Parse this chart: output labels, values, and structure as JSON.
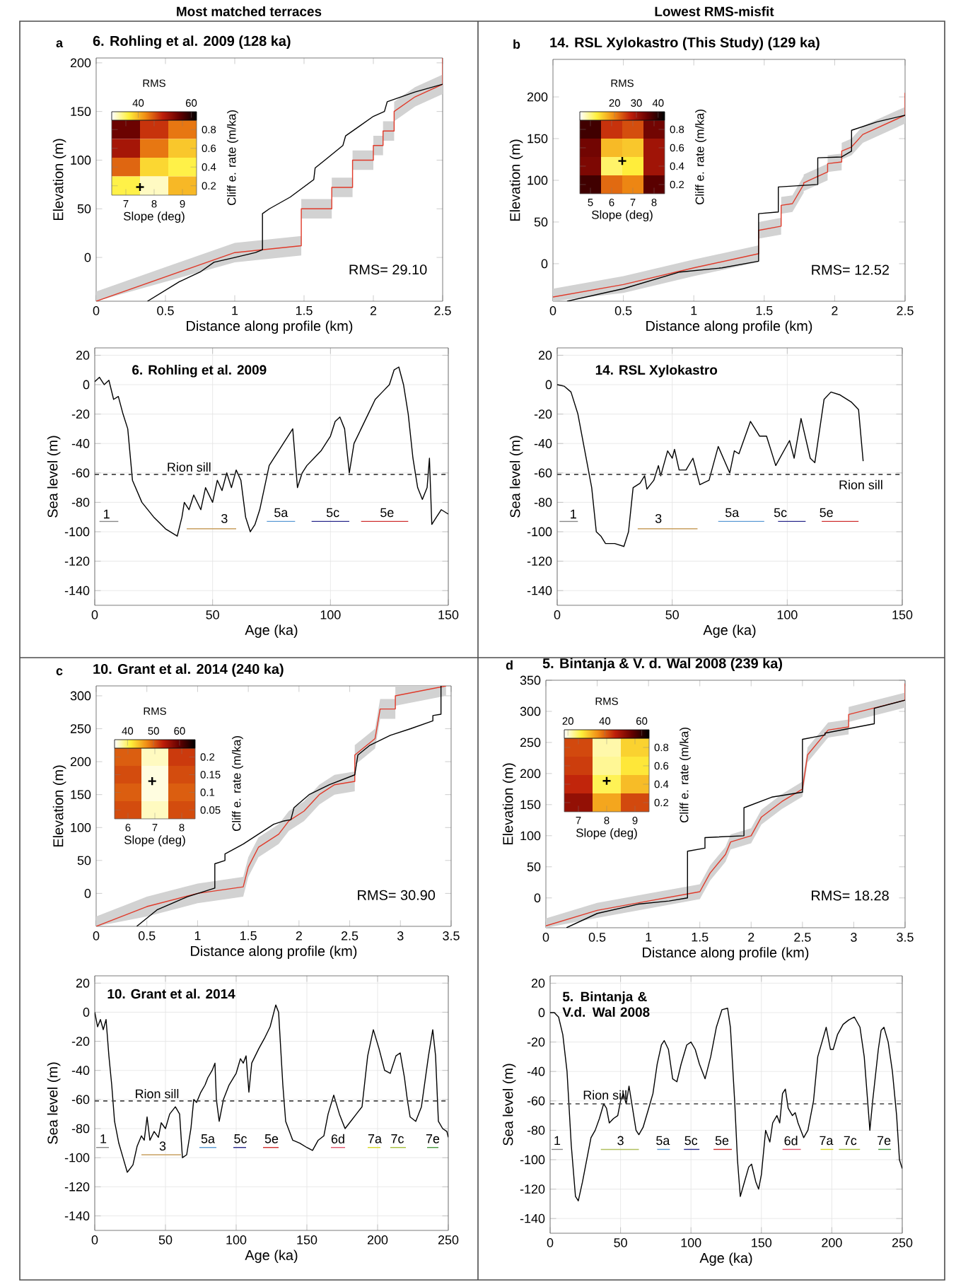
{
  "chart_data": [
    {
      "type": "other",
      "annotations": [
        "Most matched terraces",
        "Lowest RMS-misfit"
      ]
    },
    {
      "type": "line",
      "title": "6. Rohling et al. 2009 (128 ka)",
      "xlabel": "Distance along profile (km)",
      "ylabel": "Elevation (m)",
      "xlim": [
        0,
        2.5
      ],
      "ylim": [
        -45,
        205
      ],
      "xticks": [
        0,
        0.5,
        1,
        1.5,
        2,
        2.5
      ],
      "yticks": [
        0,
        50,
        100,
        150,
        200
      ],
      "annotations": [
        "a",
        "RMS= 29.10"
      ],
      "series": [
        {
          "color": "#000000",
          "x": [
            0.37,
            0.6,
            0.75,
            0.85,
            1.0,
            1.15,
            1.2,
            1.2,
            1.25,
            1.4,
            1.57,
            1.58,
            1.65,
            1.78,
            1.8,
            1.9,
            2.0,
            2.08,
            2.1,
            2.3,
            2.5
          ],
          "values": [
            -45,
            -25,
            -15,
            -5,
            0,
            5,
            8,
            45,
            50,
            62,
            80,
            92,
            100,
            115,
            125,
            135,
            145,
            150,
            160,
            170,
            178
          ]
        },
        {
          "color": "#e03a2a",
          "x": [
            0,
            0.5,
            1.0,
            1.48,
            1.48,
            1.7,
            1.7,
            1.85,
            1.85,
            2.0,
            2.0,
            2.07,
            2.07,
            2.15,
            2.15,
            2.3,
            2.5,
            2.5
          ],
          "values": [
            -45,
            -20,
            5,
            12,
            50,
            50,
            72,
            72,
            100,
            100,
            115,
            115,
            130,
            130,
            150,
            165,
            178,
            205
          ],
          "lower": [
            -45,
            null,
            -5,
            2,
            40,
            40,
            62,
            62,
            90,
            90,
            105,
            105,
            120,
            120,
            140,
            155,
            168,
            188
          ],
          "upper": [
            -35,
            null,
            15,
            22,
            60,
            60,
            82,
            82,
            110,
            110,
            125,
            125,
            140,
            140,
            160,
            175,
            188,
            205
          ]
        }
      ]
    },
    {
      "type": "heatmap",
      "clabel": "RMS",
      "xlabel": "Slope (deg)",
      "ylabel": "Cliff e. rate (m/ka)",
      "categories": [
        "7",
        "8",
        "9"
      ],
      "y_categories": [
        "0.8",
        "0.6",
        "0.4",
        "0.2"
      ],
      "clim": [
        30,
        62
      ],
      "cticks": [
        40,
        60
      ],
      "annotations": [
        "+"
      ],
      "cells": [
        [
          55,
          48,
          44
        ],
        [
          51,
          44,
          39
        ],
        [
          45,
          38,
          36
        ],
        [
          36,
          32,
          40
        ]
      ]
    },
    {
      "type": "line",
      "title": "14. RSL Xylokastro (This Study) (129 ka)",
      "xlabel": "Distance along profile (km)",
      "ylabel": "Elevation (m)",
      "xlim": [
        0,
        2.5
      ],
      "ylim": [
        -45,
        245
      ],
      "xticks": [
        0,
        0.5,
        1,
        1.5,
        2,
        2.5
      ],
      "yticks": [
        0,
        50,
        100,
        150,
        200
      ],
      "annotations": [
        "b",
        "RMS= 12.52"
      ],
      "series": [
        {
          "color": "#000000",
          "x": [
            0.1,
            0.5,
            0.9,
            1.2,
            1.46,
            1.46,
            1.6,
            1.6,
            1.88,
            1.88,
            2.05,
            2.12,
            2.12,
            2.3,
            2.5
          ],
          "values": [
            -45,
            -30,
            -10,
            -5,
            3,
            60,
            62,
            92,
            95,
            127,
            128,
            135,
            160,
            170,
            178
          ]
        },
        {
          "color": "#e03a2a",
          "x": [
            0,
            0.5,
            1.0,
            1.46,
            1.46,
            1.62,
            1.62,
            1.7,
            1.78,
            1.78,
            1.95,
            1.95,
            2.05,
            2.05,
            2.12,
            2.2,
            2.5,
            2.5
          ],
          "values": [
            -40,
            -25,
            -5,
            12,
            40,
            45,
            70,
            72,
            95,
            97,
            110,
            120,
            122,
            135,
            140,
            155,
            178,
            205
          ],
          "lower": [
            -45,
            -35,
            -15,
            2,
            30,
            35,
            60,
            62,
            85,
            87,
            100,
            110,
            112,
            125,
            130,
            145,
            168,
            188
          ],
          "upper": [
            -30,
            -15,
            5,
            22,
            50,
            55,
            80,
            82,
            105,
            107,
            120,
            130,
            132,
            145,
            150,
            165,
            188,
            215
          ]
        }
      ]
    },
    {
      "type": "heatmap",
      "clabel": "RMS",
      "xlabel": "Slope (deg)",
      "ylabel": "Cliff e. rate (m/ka)",
      "categories": [
        "5",
        "6",
        "7",
        "8"
      ],
      "y_categories": [
        "0.8",
        "0.6",
        "0.4",
        "0.2"
      ],
      "clim": [
        4,
        43
      ],
      "cticks": [
        20,
        30,
        40
      ],
      "annotations": [
        "+"
      ],
      "cells": [
        [
          38,
          26,
          24,
          34
        ],
        [
          34,
          16,
          15,
          30
        ],
        [
          33,
          10,
          12,
          30
        ],
        [
          38,
          22,
          20,
          36
        ]
      ]
    },
    {
      "type": "line",
      "title": "6. Rohling et al. 2009",
      "xlabel": "Age (ka)",
      "ylabel": "Sea level (m)",
      "xlim": [
        0,
        150
      ],
      "ylim": [
        -150,
        25
      ],
      "xticks": [
        0,
        50,
        100,
        150
      ],
      "yticks": [
        -140,
        -120,
        -100,
        -80,
        -60,
        -40,
        -20,
        0,
        20
      ],
      "grid": true,
      "ref_lines": [
        {
          "axis": "y",
          "value": -61,
          "label": "Rion sill",
          "line_style": "dashed",
          "color": "#444444"
        }
      ],
      "annotations": [
        "1",
        "3",
        "5a",
        "5c",
        "5e"
      ],
      "series": [
        {
          "color": "#000000",
          "x": [
            0,
            2,
            4,
            6,
            8,
            10,
            12,
            14,
            16,
            20,
            25,
            30,
            35,
            37,
            38,
            40,
            42,
            45,
            47,
            50,
            52,
            54,
            56,
            58,
            60,
            62,
            64,
            66,
            68,
            70,
            72,
            74,
            76,
            78,
            80,
            82,
            84,
            85,
            86,
            88,
            90,
            93,
            96,
            100,
            102,
            104,
            106,
            108,
            110,
            113,
            116,
            119,
            122,
            125,
            127,
            129,
            131,
            133,
            135,
            137,
            139,
            141,
            142,
            143,
            145,
            147,
            150
          ],
          "values": [
            2,
            5,
            0,
            3,
            -10,
            -8,
            -20,
            -30,
            -65,
            -80,
            -90,
            -98,
            -103,
            -90,
            -80,
            -85,
            -75,
            -85,
            -70,
            -80,
            -65,
            -72,
            -60,
            -70,
            -58,
            -65,
            -90,
            -100,
            -95,
            -85,
            -70,
            -55,
            -50,
            -45,
            -40,
            -35,
            -30,
            -50,
            -70,
            -60,
            -55,
            -50,
            -45,
            -35,
            -25,
            -22,
            -30,
            -60,
            -40,
            -30,
            -20,
            -10,
            -5,
            0,
            10,
            12,
            0,
            -20,
            -50,
            -70,
            -78,
            -70,
            -50,
            -95,
            -90,
            -85,
            -88
          ]
        },
        {
          "color": "#888888",
          "x": [
            2,
            10
          ],
          "values": [
            -93,
            -93
          ]
        },
        {
          "color": "#c8a060",
          "x": [
            39,
            60
          ],
          "values": [
            -98,
            -98
          ]
        },
        {
          "color": "#5b9bd5",
          "x": [
            73,
            85
          ],
          "values": [
            -93,
            -93
          ]
        },
        {
          "color": "#2b2b8c",
          "x": [
            92,
            108
          ],
          "values": [
            -93,
            -93
          ]
        },
        {
          "color": "#d03030",
          "x": [
            113,
            133
          ],
          "values": [
            -93,
            -93
          ]
        }
      ]
    },
    {
      "type": "line",
      "title": "14. RSL Xylokastro",
      "xlabel": "Age (ka)",
      "ylabel": "Sea level (m)",
      "xlim": [
        0,
        150
      ],
      "ylim": [
        -150,
        25
      ],
      "xticks": [
        0,
        50,
        100,
        150
      ],
      "yticks": [
        -140,
        -120,
        -100,
        -80,
        -60,
        -40,
        -20,
        0,
        20
      ],
      "grid": true,
      "ref_lines": [
        {
          "axis": "y",
          "value": -61,
          "label": "Rion sill",
          "line_style": "dashed",
          "color": "#444444"
        }
      ],
      "annotations": [
        "1",
        "3",
        "5a",
        "5c",
        "5e"
      ],
      "series": [
        {
          "color": "#000000",
          "x": [
            0,
            3,
            6,
            9,
            12,
            15,
            17,
            19,
            21,
            25,
            29,
            31,
            33,
            36,
            38,
            39,
            42,
            44,
            45,
            48,
            50,
            51,
            53,
            56,
            59,
            62,
            66,
            70,
            75,
            77,
            79,
            84,
            88,
            91,
            95,
            101,
            103,
            106,
            110,
            112,
            116,
            119,
            123,
            128,
            131,
            133
          ],
          "values": [
            0,
            -1,
            -5,
            -20,
            -45,
            -70,
            -100,
            -103,
            -108,
            -108,
            -110,
            -100,
            -70,
            -67,
            -62,
            -71,
            -65,
            -55,
            -62,
            -45,
            -50,
            -44,
            -58,
            -58,
            -50,
            -68,
            -65,
            -42,
            -60,
            -45,
            -47,
            -25,
            -35,
            -35,
            -55,
            -38,
            -50,
            -23,
            -50,
            -53,
            -10,
            -5,
            -7,
            -12,
            -17,
            -52
          ]
        },
        {
          "color": "#888888",
          "x": [
            1,
            9
          ],
          "values": [
            -93,
            -93
          ]
        },
        {
          "color": "#c8a060",
          "x": [
            35,
            61
          ],
          "values": [
            -98,
            -98
          ]
        },
        {
          "color": "#5b9bd5",
          "x": [
            70,
            90
          ],
          "values": [
            -93,
            -93
          ]
        },
        {
          "color": "#2b2b8c",
          "x": [
            96,
            108
          ],
          "values": [
            -93,
            -93
          ]
        },
        {
          "color": "#d03030",
          "x": [
            115,
            131
          ],
          "values": [
            -93,
            -93
          ]
        }
      ]
    },
    {
      "type": "line",
      "title": "10. Grant et al. 2014 (240 ka)",
      "xlabel": "Distance along profile (km)",
      "ylabel": "Elevation (m)",
      "xlim": [
        0,
        3.5
      ],
      "ylim": [
        -50,
        315
      ],
      "xticks": [
        0,
        0.5,
        1,
        1.5,
        2,
        2.5,
        3,
        3.5
      ],
      "yticks": [
        0,
        50,
        100,
        150,
        200,
        250,
        300
      ],
      "annotations": [
        "c",
        "RMS= 30.90"
      ],
      "series": [
        {
          "color": "#000000",
          "x": [
            0.4,
            0.6,
            0.9,
            1.17,
            1.17,
            1.27,
            1.27,
            1.45,
            1.6,
            1.75,
            1.85,
            1.92,
            1.95,
            2.1,
            2.3,
            2.55,
            2.58,
            2.7,
            2.9,
            3.1,
            3.32,
            3.32,
            3.4,
            3.4
          ],
          "values": [
            -50,
            -25,
            -5,
            8,
            45,
            50,
            60,
            75,
            90,
            105,
            110,
            112,
            130,
            150,
            165,
            180,
            210,
            225,
            240,
            250,
            262,
            270,
            272,
            315
          ]
        },
        {
          "color": "#e03a2a",
          "x": [
            0,
            0.5,
            1.0,
            1.45,
            1.5,
            1.6,
            1.8,
            1.9,
            2.05,
            2.2,
            2.35,
            2.55,
            2.55,
            2.75,
            2.8,
            2.95,
            2.95,
            3.45
          ],
          "values": [
            -50,
            -20,
            0,
            10,
            40,
            70,
            90,
            110,
            125,
            150,
            165,
            170,
            210,
            235,
            280,
            280,
            300,
            315
          ],
          "lower": [
            -50,
            -35,
            -15,
            -5,
            25,
            55,
            75,
            95,
            110,
            135,
            150,
            155,
            195,
            220,
            265,
            265,
            285,
            300
          ],
          "upper": [
            -35,
            -5,
            15,
            25,
            55,
            85,
            105,
            125,
            140,
            165,
            180,
            185,
            225,
            250,
            295,
            295,
            315,
            315
          ]
        }
      ]
    },
    {
      "type": "heatmap",
      "clabel": "RMS",
      "xlabel": "Slope (deg)",
      "ylabel": "Cliff e. rate (m/ka)",
      "categories": [
        "6",
        "7",
        "8"
      ],
      "y_categories": [
        "0.2",
        "0.15",
        "0.1",
        "0.05"
      ],
      "clim": [
        35,
        66
      ],
      "cticks": [
        40,
        50,
        60
      ],
      "annotations": [
        "+"
      ],
      "cells": [
        [
          50,
          37,
          52
        ],
        [
          51,
          36,
          51
        ],
        [
          50,
          36,
          50
        ],
        [
          51,
          37,
          51
        ]
      ]
    },
    {
      "type": "line",
      "title": "5. Bintanja & V. d. Wal 2008 (239 ka)",
      "xlabel": "Distance along profile (km)",
      "ylabel": "Elevation (m)",
      "xlim": [
        0,
        3.5
      ],
      "ylim": [
        -48,
        350
      ],
      "xticks": [
        0,
        0.5,
        1,
        1.5,
        2,
        2.5,
        3,
        3.5
      ],
      "yticks": [
        0,
        50,
        100,
        150,
        200,
        250,
        300,
        350
      ],
      "annotations": [
        "d",
        "RMS= 18.28"
      ],
      "series": [
        {
          "color": "#000000",
          "x": [
            0.2,
            0.5,
            0.9,
            1.2,
            1.38,
            1.38,
            1.55,
            1.55,
            1.93,
            1.93,
            2.2,
            2.5,
            2.5,
            2.72,
            2.72,
            3.2,
            3.2,
            3.5
          ],
          "values": [
            -48,
            -25,
            -10,
            -5,
            0,
            75,
            80,
            97,
            100,
            145,
            162,
            170,
            255,
            262,
            265,
            280,
            305,
            318
          ]
        },
        {
          "color": "#e03a2a",
          "x": [
            0,
            0.5,
            1.0,
            1.5,
            1.6,
            1.75,
            1.8,
            2.0,
            2.1,
            2.3,
            2.5,
            2.55,
            2.75,
            2.95,
            2.95,
            3.5,
            3.5
          ],
          "values": [
            -45,
            -20,
            -5,
            10,
            40,
            70,
            90,
            100,
            130,
            155,
            175,
            230,
            270,
            275,
            295,
            318,
            345
          ],
          "lower": [
            -48,
            -32,
            -17,
            -2,
            28,
            58,
            78,
            88,
            118,
            143,
            163,
            218,
            258,
            263,
            283,
            306,
            333
          ],
          "upper": [
            -33,
            -8,
            7,
            22,
            52,
            82,
            102,
            112,
            142,
            167,
            187,
            242,
            282,
            287,
            307,
            330,
            350
          ]
        }
      ]
    },
    {
      "type": "heatmap",
      "clabel": "RMS",
      "xlabel": "Slope (deg)",
      "ylabel": "Cliff e. rate (m/ka)",
      "categories": [
        "7",
        "8",
        "9"
      ],
      "y_categories": [
        "0.8",
        "0.6",
        "0.4",
        "0.2"
      ],
      "clim": [
        18,
        64
      ],
      "cticks": [
        20,
        40,
        60
      ],
      "annotations": [
        "+"
      ],
      "cells": [
        [
          42,
          22,
          30
        ],
        [
          43,
          23,
          28
        ],
        [
          45,
          26,
          32
        ],
        [
          50,
          34,
          42
        ]
      ]
    },
    {
      "type": "line",
      "title": "10. Grant et al. 2014",
      "xlabel": "Age (ka)",
      "ylabel": "Sea level (m)",
      "xlim": [
        0,
        250
      ],
      "ylim": [
        -150,
        25
      ],
      "xticks": [
        0,
        50,
        100,
        150,
        200,
        250
      ],
      "yticks": [
        -140,
        -120,
        -100,
        -80,
        -60,
        -40,
        -20,
        0,
        20
      ],
      "grid": true,
      "ref_lines": [
        {
          "axis": "y",
          "value": -61,
          "label": "Rion sill",
          "line_style": "dashed",
          "color": "#444444"
        }
      ],
      "annotations": [
        "1",
        "3",
        "5a",
        "5c",
        "5e",
        "6d",
        "7a",
        "7c",
        "7e"
      ],
      "series": [
        {
          "color": "#000000",
          "x": [
            0,
            2,
            4,
            6,
            8,
            10,
            12,
            14,
            17,
            20,
            23,
            27,
            30,
            33,
            35,
            37,
            39,
            42,
            45,
            47,
            50,
            53,
            57,
            60,
            62,
            65,
            68,
            70,
            72,
            75,
            78,
            80,
            83,
            85,
            86,
            88,
            91,
            95,
            100,
            103,
            105,
            107,
            109,
            111,
            116,
            120,
            124,
            128,
            130,
            133,
            135,
            140,
            145,
            150,
            154,
            158,
            162,
            165,
            169,
            173,
            177,
            181,
            185,
            189,
            193,
            197,
            201,
            205,
            209,
            213,
            216,
            219,
            221,
            223,
            227,
            231,
            236,
            239,
            241,
            243,
            246,
            249,
            250
          ],
          "values": [
            0,
            -10,
            -5,
            -12,
            -5,
            -30,
            -50,
            -75,
            -90,
            -100,
            -110,
            -105,
            -92,
            -85,
            -88,
            -72,
            -88,
            -82,
            -86,
            -76,
            -80,
            -70,
            -65,
            -70,
            -100,
            -98,
            -80,
            -60,
            -62,
            -55,
            -50,
            -45,
            -40,
            -35,
            -60,
            -75,
            -60,
            -50,
            -42,
            -32,
            -35,
            -30,
            -55,
            -35,
            -25,
            -18,
            -10,
            5,
            0,
            -50,
            -75,
            -88,
            -90,
            -93,
            -95,
            -88,
            -85,
            -70,
            -57,
            -70,
            -80,
            -75,
            -70,
            -65,
            -30,
            -12,
            -25,
            -40,
            -42,
            -30,
            -28,
            -45,
            -60,
            -72,
            -75,
            -65,
            -30,
            -12,
            -30,
            -75,
            -80,
            -82,
            -86
          ]
        },
        {
          "color": "#888888",
          "x": [
            1,
            10
          ],
          "values": [
            -93,
            -93
          ]
        },
        {
          "color": "#c8a060",
          "x": [
            33,
            61
          ],
          "values": [
            -98,
            -98
          ]
        },
        {
          "color": "#5b9bd5",
          "x": [
            74,
            86
          ],
          "values": [
            -93,
            -93
          ]
        },
        {
          "color": "#2b2b8c",
          "x": [
            98,
            107
          ],
          "values": [
            -93,
            -93
          ]
        },
        {
          "color": "#d03030",
          "x": [
            119,
            130
          ],
          "values": [
            -93,
            -93
          ]
        },
        {
          "color": "#e05a70",
          "x": [
            167,
            177
          ],
          "values": [
            -93,
            -93
          ]
        },
        {
          "color": "#d8d828",
          "x": [
            193,
            202
          ],
          "values": [
            -93,
            -93
          ]
        },
        {
          "color": "#a8c040",
          "x": [
            209,
            220
          ],
          "values": [
            -93,
            -93
          ]
        },
        {
          "color": "#4a9a40",
          "x": [
            235,
            243
          ],
          "values": [
            -93,
            -93
          ]
        }
      ]
    },
    {
      "type": "line",
      "title": "5. Bintanja & V.d. Wal 2008",
      "xlabel": "Age (ka)",
      "ylabel": "Sea level (m)",
      "xlim": [
        0,
        250
      ],
      "ylim": [
        -150,
        25
      ],
      "xticks": [
        0,
        50,
        100,
        150,
        200,
        250
      ],
      "yticks": [
        -140,
        -120,
        -100,
        -80,
        -60,
        -40,
        -20,
        0,
        20
      ],
      "grid": true,
      "ref_lines": [
        {
          "axis": "y",
          "value": -62,
          "label": "Rion sill",
          "line_style": "dashed",
          "color": "#444444"
        }
      ],
      "annotations": [
        "1",
        "3",
        "5a",
        "5c",
        "5e",
        "6d",
        "7a",
        "7c",
        "7e"
      ],
      "series": [
        {
          "color": "#000000",
          "x": [
            0,
            3,
            6,
            9,
            12,
            15,
            18,
            20,
            23,
            26,
            29,
            32,
            35,
            38,
            40,
            42,
            45,
            48,
            50,
            52,
            54,
            56,
            58,
            61,
            63,
            66,
            70,
            73,
            76,
            79,
            81,
            84,
            87,
            90,
            93,
            97,
            100,
            103,
            106,
            110,
            114,
            118,
            122,
            126,
            128,
            131,
            133,
            135,
            138,
            141,
            143,
            146,
            148,
            150,
            153,
            156,
            158,
            161,
            163,
            165,
            167,
            169,
            172,
            174,
            176,
            180,
            183,
            187,
            190,
            193,
            196,
            199,
            201,
            204,
            208,
            212,
            216,
            220,
            223,
            225,
            227,
            229,
            233,
            235,
            237,
            240,
            243,
            246,
            248,
            250
          ],
          "values": [
            0,
            0,
            -3,
            -15,
            -40,
            -90,
            -125,
            -128,
            -115,
            -100,
            -85,
            -80,
            -72,
            -62,
            -65,
            -75,
            -72,
            -70,
            -60,
            -55,
            -62,
            -50,
            -62,
            -80,
            -83,
            -78,
            -65,
            -55,
            -35,
            -22,
            -19,
            -25,
            -45,
            -47,
            -35,
            -22,
            -20,
            -25,
            -35,
            -45,
            -30,
            -10,
            2,
            3,
            -10,
            -60,
            -100,
            -125,
            -115,
            -105,
            -103,
            -115,
            -120,
            -110,
            -80,
            -88,
            -75,
            -70,
            -75,
            -55,
            -52,
            -65,
            -70,
            -68,
            -75,
            -85,
            -80,
            -60,
            -30,
            -20,
            -10,
            -25,
            -25,
            -15,
            -8,
            -5,
            -3,
            -10,
            -30,
            -55,
            -80,
            -60,
            -25,
            -12,
            -10,
            -20,
            -40,
            -70,
            -100,
            -106
          ]
        },
        {
          "color": "#888888",
          "x": [
            1,
            9
          ],
          "values": [
            -93,
            -93
          ]
        },
        {
          "color": "#b0c060",
          "x": [
            36,
            63
          ],
          "values": [
            -93,
            -93
          ]
        },
        {
          "color": "#5b9bd5",
          "x": [
            76,
            85
          ],
          "values": [
            -93,
            -93
          ]
        },
        {
          "color": "#2b2b8c",
          "x": [
            95,
            106
          ],
          "values": [
            -93,
            -93
          ]
        },
        {
          "color": "#d03030",
          "x": [
            116,
            129
          ],
          "values": [
            -93,
            -93
          ]
        },
        {
          "color": "#e05a70",
          "x": [
            165,
            178
          ],
          "values": [
            -93,
            -93
          ]
        },
        {
          "color": "#d8d828",
          "x": [
            192,
            201
          ],
          "values": [
            -93,
            -93
          ]
        },
        {
          "color": "#a8c040",
          "x": [
            205,
            220
          ],
          "values": [
            -93,
            -93
          ]
        },
        {
          "color": "#4a9a40",
          "x": [
            233,
            242
          ],
          "values": [
            -93,
            -93
          ]
        }
      ]
    }
  ]
}
